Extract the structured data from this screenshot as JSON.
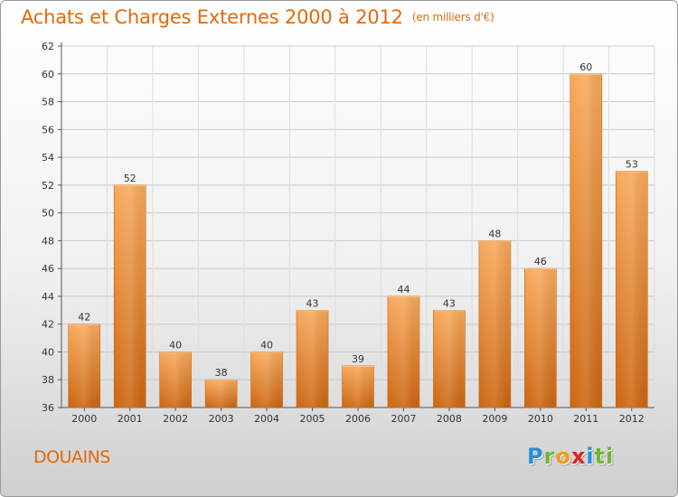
{
  "title": "Achats et Charges Externes 2000 à 2012",
  "unit": "(en milliers d'€)",
  "city": "DOUAINS",
  "logo": "Proxiti",
  "colors": {
    "accent": "#e06a0c",
    "bar_top": "#f6a75a",
    "bar_bottom": "#cf6a14"
  },
  "chart_data": {
    "type": "bar",
    "title": "Achats et Charges Externes 2000 à 2012",
    "xlabel": "",
    "ylabel": "",
    "categories": [
      "2000",
      "2001",
      "2002",
      "2003",
      "2004",
      "2005",
      "2006",
      "2007",
      "2008",
      "2009",
      "2010",
      "2011",
      "2012"
    ],
    "values": [
      42,
      52,
      40,
      38,
      40,
      43,
      39,
      44,
      43,
      48,
      46,
      60,
      53
    ],
    "ylim": [
      36,
      62
    ],
    "yticks": [
      36,
      38,
      40,
      42,
      44,
      46,
      48,
      50,
      52,
      54,
      56,
      58,
      60,
      62
    ],
    "grid": true,
    "legend": "none"
  }
}
